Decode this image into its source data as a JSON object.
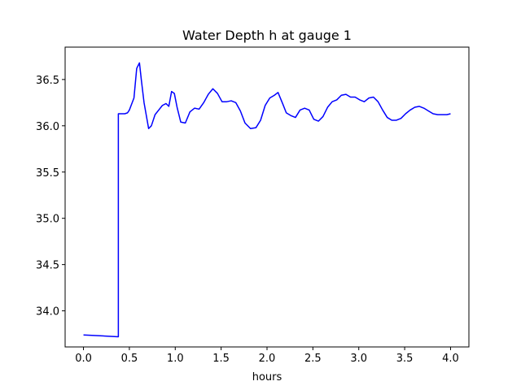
{
  "chart_data": {
    "type": "line",
    "title": "Water Depth h at gauge 1",
    "xlabel": "hours",
    "ylabel": "",
    "xlim": [
      -0.2,
      4.2
    ],
    "ylim": [
      33.61,
      36.85
    ],
    "x_ticks": [
      0.0,
      0.5,
      1.0,
      1.5,
      2.0,
      2.5,
      3.0,
      3.5,
      4.0
    ],
    "x_tick_labels": [
      "0.0",
      "0.5",
      "1.0",
      "1.5",
      "2.0",
      "2.5",
      "3.0",
      "3.5",
      "4.0"
    ],
    "y_ticks": [
      34.0,
      34.5,
      35.0,
      35.5,
      36.0,
      36.5
    ],
    "y_tick_labels": [
      "34.0",
      "34.5",
      "35.0",
      "35.5",
      "36.0",
      "36.5"
    ],
    "grid": false,
    "series": [
      {
        "color": "#0000ff",
        "x": [
          0.0,
          0.38,
          0.38,
          0.45,
          0.48,
          0.5,
          0.55,
          0.58,
          0.61,
          0.63,
          0.66,
          0.71,
          0.74,
          0.78,
          0.82,
          0.86,
          0.9,
          0.93,
          0.96,
          0.99,
          1.02,
          1.06,
          1.11,
          1.16,
          1.21,
          1.26,
          1.31,
          1.36,
          1.41,
          1.46,
          1.51,
          1.56,
          1.61,
          1.66,
          1.71,
          1.76,
          1.82,
          1.88,
          1.93,
          1.98,
          2.03,
          2.08,
          2.12,
          2.17,
          2.21,
          2.26,
          2.31,
          2.36,
          2.41,
          2.46,
          2.51,
          2.56,
          2.61,
          2.66,
          2.71,
          2.76,
          2.81,
          2.86,
          2.91,
          2.96,
          3.01,
          3.06,
          3.11,
          3.16,
          3.21,
          3.26,
          3.31,
          3.36,
          3.41,
          3.46,
          3.51,
          3.56,
          3.61,
          3.66,
          3.71,
          3.76,
          3.81,
          3.86,
          3.91,
          3.96,
          4.0
        ],
        "y": [
          33.74,
          33.72,
          36.13,
          36.13,
          36.14,
          36.17,
          36.3,
          36.62,
          36.68,
          36.5,
          36.25,
          35.97,
          36.0,
          36.12,
          36.17,
          36.22,
          36.24,
          36.21,
          36.37,
          36.35,
          36.2,
          36.04,
          36.03,
          36.15,
          36.19,
          36.18,
          36.25,
          36.34,
          36.4,
          36.35,
          36.26,
          36.26,
          36.27,
          36.25,
          36.16,
          36.03,
          35.97,
          35.98,
          36.06,
          36.22,
          36.3,
          36.33,
          36.36,
          36.24,
          36.14,
          36.11,
          36.09,
          36.17,
          36.19,
          36.17,
          36.07,
          36.05,
          36.1,
          36.2,
          36.26,
          36.28,
          36.33,
          36.34,
          36.31,
          36.31,
          36.28,
          36.26,
          36.3,
          36.31,
          36.26,
          36.17,
          36.09,
          36.06,
          36.06,
          36.08,
          36.13,
          36.17,
          36.2,
          36.21,
          36.19,
          36.16,
          36.13,
          36.12,
          36.12,
          36.12,
          36.13
        ]
      }
    ]
  }
}
